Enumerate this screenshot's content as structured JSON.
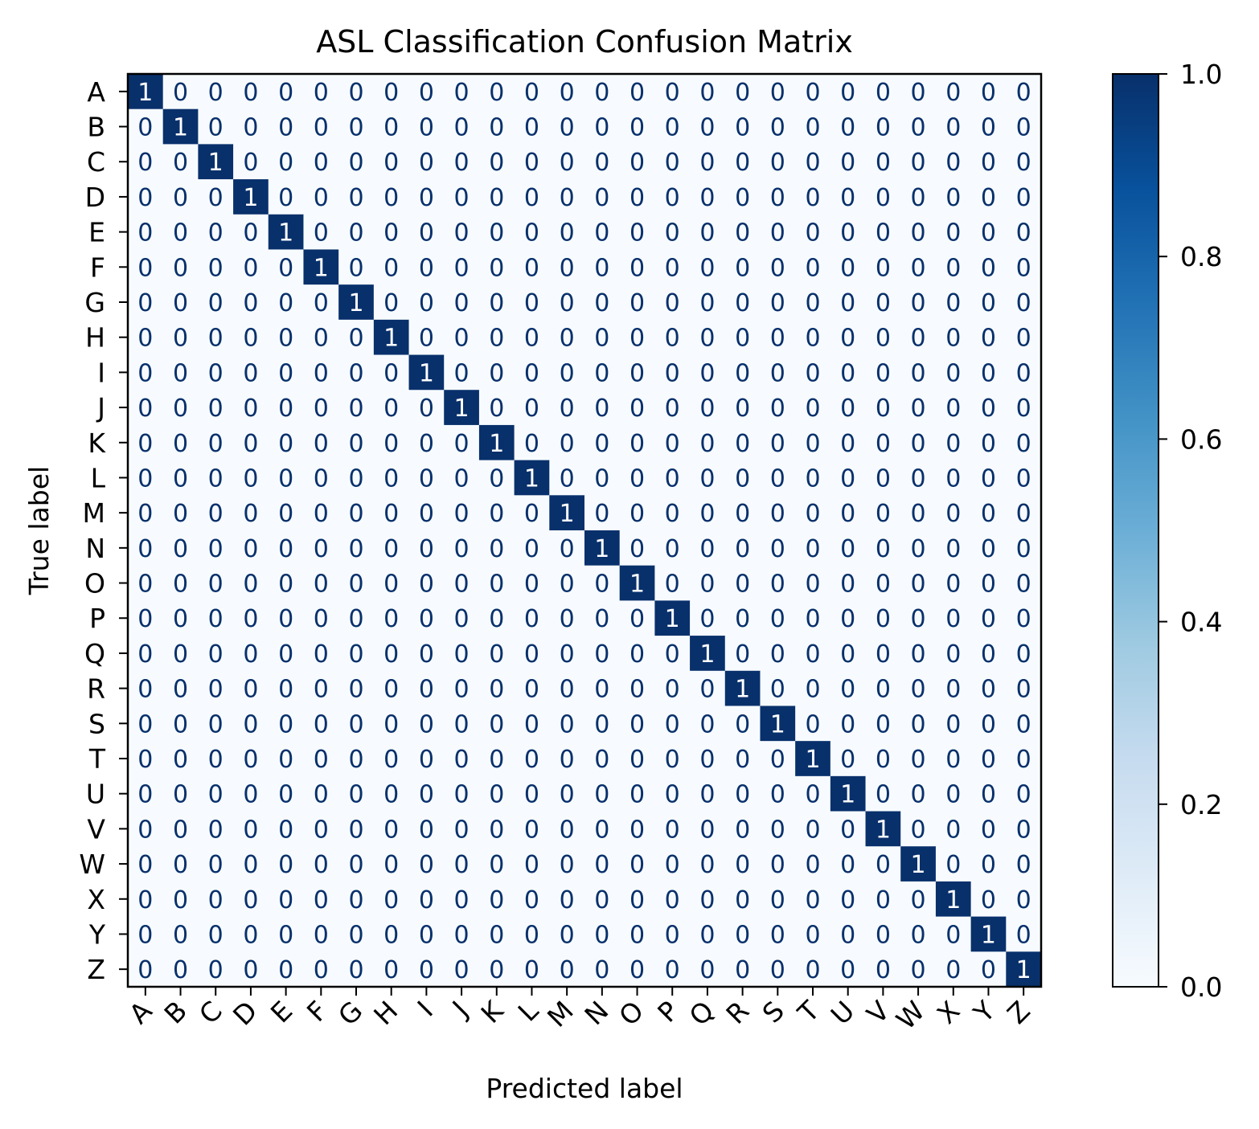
{
  "chart_data": {
    "type": "heatmap",
    "title": "ASL Classification Confusion Matrix",
    "xlabel": "Predicted label",
    "ylabel": "True label",
    "x_categories": [
      "A",
      "B",
      "C",
      "D",
      "E",
      "F",
      "G",
      "H",
      "I",
      "J",
      "K",
      "L",
      "M",
      "N",
      "O",
      "P",
      "Q",
      "R",
      "S",
      "T",
      "U",
      "V",
      "W",
      "X",
      "Y",
      "Z"
    ],
    "y_categories": [
      "A",
      "B",
      "C",
      "D",
      "E",
      "F",
      "G",
      "H",
      "I",
      "J",
      "K",
      "L",
      "M",
      "N",
      "O",
      "P",
      "Q",
      "R",
      "S",
      "T",
      "U",
      "V",
      "W",
      "X",
      "Y",
      "Z"
    ],
    "matrix_description_values": "identity",
    "values_diagonal": 1,
    "values_off_diagonal": 0,
    "colorbar": {
      "min": 0.0,
      "max": 1.0,
      "ticks": [
        "0.0",
        "0.2",
        "0.4",
        "0.6",
        "0.8",
        "1.0"
      ],
      "colormap": "Blues",
      "color_low": "#f7fbff",
      "color_high": "#08306b"
    },
    "text_color_dark": "#08306b",
    "text_color_light": "#ffffff",
    "x_tick_rotation": 45,
    "grid": false
  }
}
